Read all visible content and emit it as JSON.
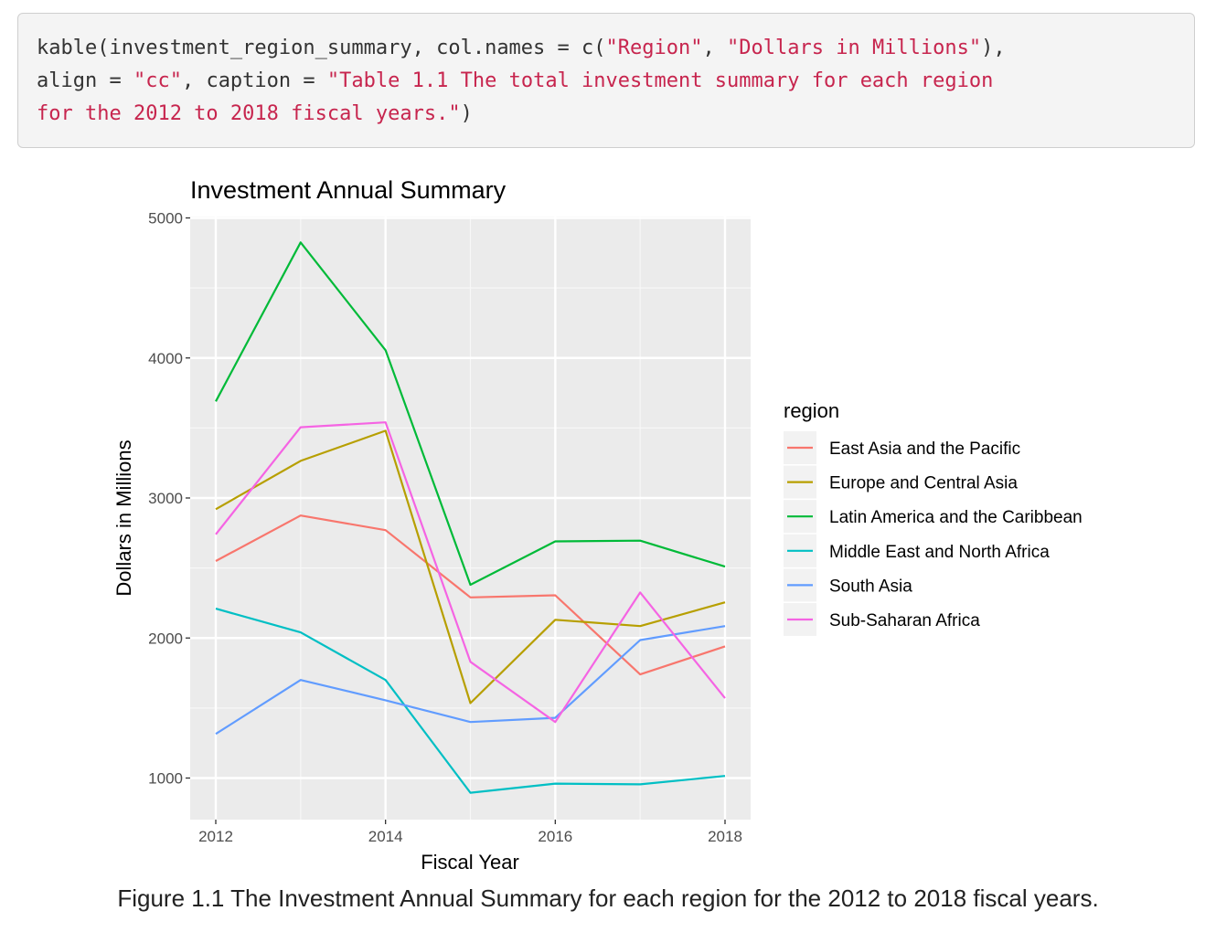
{
  "code": {
    "line1_a": "kable(investment_region_summary, col.names = c(",
    "line1_s1": "\"Region\"",
    "line1_b": ", ",
    "line1_s2": "\"Dollars in Millions\"",
    "line1_c": "),",
    "line2_a": "align = ",
    "line2_s1": "\"cc\"",
    "line2_b": ", caption = ",
    "line2_s2": "\"Table 1.1 The total investment summary for each region",
    "line3_s1": "for the 2012 to 2018 fiscal years.\"",
    "line3_b": ")"
  },
  "chart_data": {
    "type": "line",
    "title": "Investment Annual Summary",
    "xlabel": "Fiscal Year",
    "ylabel": "Dollars in Millions",
    "x": [
      2012,
      2013,
      2014,
      2015,
      2016,
      2017,
      2018
    ],
    "xticks": [
      2012,
      2014,
      2016,
      2018
    ],
    "yticks": [
      1000,
      2000,
      3000,
      4000,
      5000
    ],
    "xlim": [
      2011.7,
      2018.3
    ],
    "ylim": [
      700,
      5000
    ],
    "grid": true,
    "legend_title": "region",
    "legend_position": "right",
    "series": [
      {
        "name": "East Asia and the Pacific",
        "color": "#F8766D",
        "values": [
          2550,
          2875,
          2770,
          2290,
          2305,
          1740,
          1940
        ]
      },
      {
        "name": "Europe and Central Asia",
        "color": "#B79F00",
        "values": [
          2920,
          3265,
          3480,
          1535,
          2130,
          2085,
          2255
        ]
      },
      {
        "name": "Latin America and the Caribbean",
        "color": "#00BA38",
        "values": [
          3690,
          4825,
          4055,
          2380,
          2690,
          2695,
          2510
        ]
      },
      {
        "name": "Middle East and North Africa",
        "color": "#00BFC4",
        "values": [
          2210,
          2040,
          1700,
          895,
          960,
          955,
          1015
        ]
      },
      {
        "name": "South Asia",
        "color": "#619CFF",
        "values": [
          1315,
          1700,
          1555,
          1400,
          1430,
          1985,
          2085
        ]
      },
      {
        "name": "Sub-Saharan Africa",
        "color": "#F564E3",
        "values": [
          2740,
          3505,
          3540,
          1830,
          1400,
          2325,
          1570
        ]
      }
    ]
  },
  "figure_caption": "Figure 1.1 The Investment Annual Summary for each region for the 2012 to 2018 fiscal years."
}
